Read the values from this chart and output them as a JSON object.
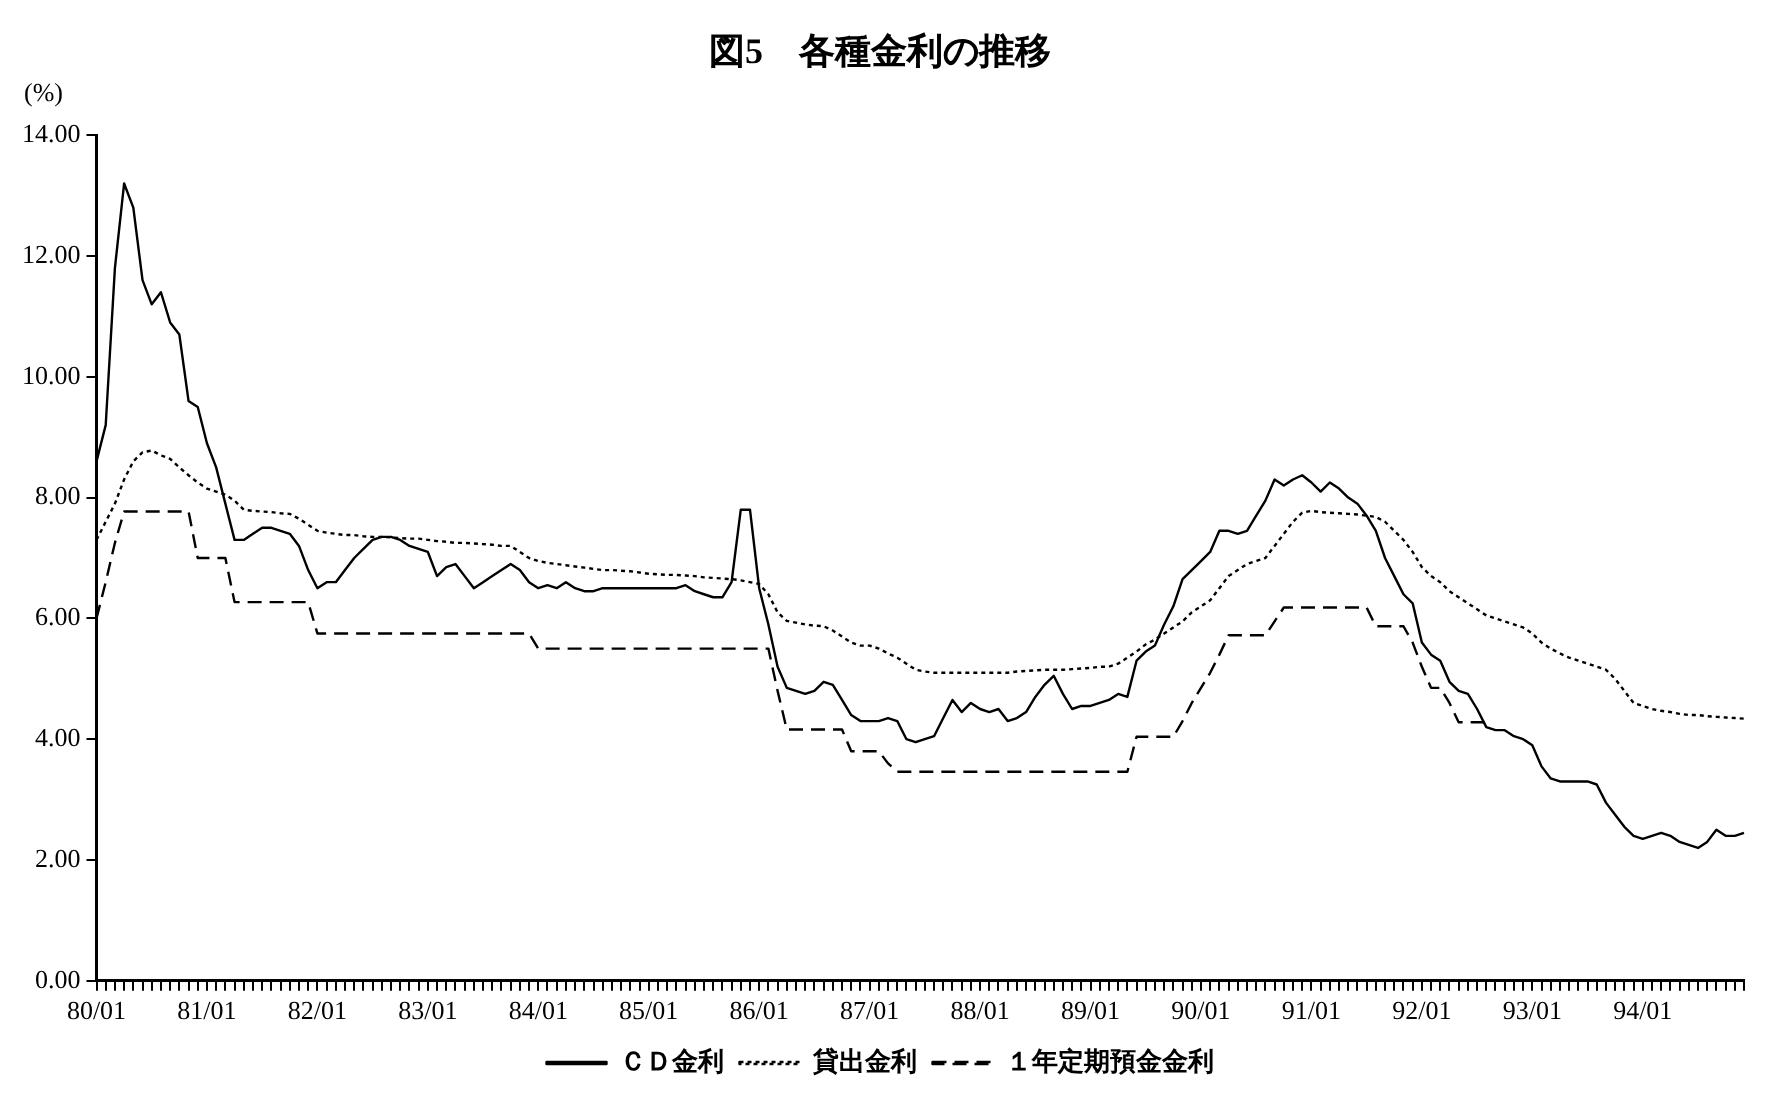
{
  "chart_data": {
    "type": "line",
    "title": "図5　各種金利の推移",
    "ylabel": "(%)",
    "categories": [
      "80/01",
      null,
      null,
      null,
      null,
      null,
      null,
      null,
      null,
      null,
      null,
      null,
      "81/01",
      null,
      null,
      null,
      null,
      null,
      null,
      null,
      null,
      null,
      null,
      null,
      "82/01",
      null,
      null,
      null,
      null,
      null,
      null,
      null,
      null,
      null,
      null,
      null,
      "83/01",
      null,
      null,
      null,
      null,
      null,
      null,
      null,
      null,
      null,
      null,
      null,
      "84/01",
      null,
      null,
      null,
      null,
      null,
      null,
      null,
      null,
      null,
      null,
      null,
      "85/01",
      null,
      null,
      null,
      null,
      null,
      null,
      null,
      null,
      null,
      null,
      null,
      "86/01",
      null,
      null,
      null,
      null,
      null,
      null,
      null,
      null,
      null,
      null,
      null,
      "87/01",
      null,
      null,
      null,
      null,
      null,
      null,
      null,
      null,
      null,
      null,
      null,
      "88/01",
      null,
      null,
      null,
      null,
      null,
      null,
      null,
      null,
      null,
      null,
      null,
      "89/01",
      null,
      null,
      null,
      null,
      null,
      null,
      null,
      null,
      null,
      null,
      null,
      "90/01",
      null,
      null,
      null,
      null,
      null,
      null,
      null,
      null,
      null,
      null,
      null,
      "91/01",
      null,
      null,
      null,
      null,
      null,
      null,
      null,
      null,
      null,
      null,
      null,
      "92/01",
      null,
      null,
      null,
      null,
      null,
      null,
      null,
      null,
      null,
      null,
      null,
      "93/01",
      null,
      null,
      null,
      null,
      null,
      null,
      null,
      null,
      null,
      null,
      null,
      "94/01",
      null,
      null,
      null,
      null,
      null,
      null,
      null,
      null,
      null,
      null,
      null
    ],
    "series": [
      {
        "name": "ＣＤ金利",
        "color": "#000000",
        "line_style": "solid",
        "values": [
          8.6,
          9.2,
          11.8,
          13.2,
          12.8,
          11.6,
          11.2,
          11.4,
          10.9,
          10.7,
          9.6,
          9.5,
          8.9,
          8.5,
          7.9,
          7.3,
          7.3,
          7.4,
          7.5,
          7.5,
          7.45,
          7.4,
          7.2,
          6.8,
          6.5,
          6.6,
          6.6,
          6.8,
          7.0,
          7.15,
          7.3,
          7.35,
          7.35,
          7.3,
          7.2,
          7.15,
          7.1,
          6.7,
          6.85,
          6.9,
          6.7,
          6.5,
          6.6,
          6.7,
          6.8,
          6.9,
          6.8,
          6.6,
          6.5,
          6.55,
          6.5,
          6.6,
          6.5,
          6.45,
          6.45,
          6.5,
          6.5,
          6.5,
          6.5,
          6.5,
          6.5,
          6.5,
          6.5,
          6.5,
          6.55,
          6.45,
          6.4,
          6.35,
          6.35,
          6.6,
          7.8,
          7.8,
          6.5,
          5.9,
          5.2,
          4.85,
          4.8,
          4.75,
          4.8,
          4.95,
          4.9,
          4.65,
          4.4,
          4.3,
          4.3,
          4.3,
          4.35,
          4.3,
          4.0,
          3.95,
          4.0,
          4.05,
          4.35,
          4.65,
          4.45,
          4.6,
          4.5,
          4.45,
          4.5,
          4.3,
          4.35,
          4.45,
          4.7,
          4.9,
          5.05,
          4.75,
          4.5,
          4.55,
          4.55,
          4.6,
          4.65,
          4.75,
          4.7,
          5.3,
          5.45,
          5.55,
          5.9,
          6.2,
          6.65,
          6.8,
          6.95,
          7.1,
          7.45,
          7.45,
          7.4,
          7.45,
          7.7,
          7.95,
          8.3,
          8.2,
          8.3,
          8.37,
          8.25,
          8.1,
          8.25,
          8.15,
          8.0,
          7.9,
          7.7,
          7.45,
          7.0,
          6.7,
          6.4,
          6.25,
          5.6,
          5.4,
          5.3,
          4.95,
          4.8,
          4.75,
          4.5,
          4.2,
          4.15,
          4.15,
          4.05,
          4.0,
          3.9,
          3.55,
          3.35,
          3.3,
          3.3,
          3.3,
          3.3,
          3.25,
          2.95,
          2.75,
          2.55,
          2.4,
          2.35,
          2.4,
          2.45,
          2.4,
          2.3,
          2.25,
          2.2,
          2.3,
          2.5,
          2.4,
          2.4,
          2.45
        ]
      },
      {
        "name": "貸出金利",
        "color": "#000000",
        "line_style": "dotted",
        "values": [
          7.3,
          7.6,
          7.9,
          8.3,
          8.6,
          8.75,
          8.78,
          8.7,
          8.64,
          8.5,
          8.37,
          8.25,
          8.15,
          8.1,
          8.05,
          7.95,
          7.8,
          7.78,
          7.77,
          7.76,
          7.74,
          7.73,
          7.65,
          7.55,
          7.45,
          7.42,
          7.4,
          7.38,
          7.38,
          7.36,
          7.35,
          7.35,
          7.34,
          7.33,
          7.32,
          7.32,
          7.3,
          7.28,
          7.27,
          7.25,
          7.25,
          7.24,
          7.23,
          7.22,
          7.2,
          7.2,
          7.1,
          7.0,
          6.95,
          6.92,
          6.9,
          6.88,
          6.86,
          6.84,
          6.82,
          6.8,
          6.8,
          6.79,
          6.78,
          6.76,
          6.74,
          6.73,
          6.72,
          6.72,
          6.71,
          6.7,
          6.68,
          6.67,
          6.66,
          6.65,
          6.63,
          6.6,
          6.57,
          6.4,
          6.1,
          5.96,
          5.93,
          5.9,
          5.88,
          5.87,
          5.8,
          5.7,
          5.6,
          5.55,
          5.55,
          5.5,
          5.42,
          5.35,
          5.25,
          5.15,
          5.12,
          5.1,
          5.1,
          5.1,
          5.1,
          5.1,
          5.1,
          5.1,
          5.1,
          5.1,
          5.12,
          5.13,
          5.14,
          5.15,
          5.15,
          5.15,
          5.16,
          5.17,
          5.18,
          5.2,
          5.2,
          5.25,
          5.35,
          5.45,
          5.57,
          5.65,
          5.75,
          5.85,
          5.95,
          6.1,
          6.2,
          6.3,
          6.5,
          6.7,
          6.8,
          6.9,
          6.95,
          7.0,
          7.2,
          7.4,
          7.6,
          7.75,
          7.78,
          7.76,
          7.75,
          7.74,
          7.73,
          7.72,
          7.7,
          7.68,
          7.6,
          7.45,
          7.3,
          7.1,
          6.85,
          6.7,
          6.6,
          6.45,
          6.35,
          6.25,
          6.15,
          6.05,
          6.0,
          5.95,
          5.9,
          5.85,
          5.75,
          5.6,
          5.5,
          5.42,
          5.35,
          5.3,
          5.25,
          5.2,
          5.15,
          5.0,
          4.8,
          4.6,
          4.55,
          4.5,
          4.47,
          4.45,
          4.42,
          4.4,
          4.4,
          4.38,
          4.37,
          4.36,
          4.35,
          4.34
        ]
      },
      {
        "name": "１年定期預金金利",
        "color": "#000000",
        "line_style": "dashed",
        "values": [
          6.0,
          6.6,
          7.25,
          7.77,
          7.77,
          7.77,
          7.77,
          7.77,
          7.77,
          7.77,
          7.77,
          7.0,
          7.0,
          7.0,
          7.0,
          6.27,
          6.27,
          6.27,
          6.27,
          6.27,
          6.27,
          6.27,
          6.27,
          6.27,
          5.75,
          5.75,
          5.75,
          5.75,
          5.75,
          5.75,
          5.75,
          5.75,
          5.75,
          5.75,
          5.75,
          5.75,
          5.75,
          5.75,
          5.75,
          5.75,
          5.75,
          5.75,
          5.75,
          5.75,
          5.75,
          5.75,
          5.75,
          5.75,
          5.5,
          5.5,
          5.5,
          5.5,
          5.5,
          5.5,
          5.5,
          5.5,
          5.5,
          5.5,
          5.5,
          5.5,
          5.5,
          5.5,
          5.5,
          5.5,
          5.5,
          5.5,
          5.5,
          5.5,
          5.5,
          5.5,
          5.5,
          5.5,
          5.5,
          5.5,
          4.8,
          4.16,
          4.16,
          4.16,
          4.16,
          4.16,
          4.16,
          4.16,
          3.8,
          3.8,
          3.8,
          3.8,
          3.6,
          3.46,
          3.46,
          3.46,
          3.46,
          3.46,
          3.46,
          3.46,
          3.46,
          3.46,
          3.46,
          3.46,
          3.46,
          3.46,
          3.46,
          3.46,
          3.46,
          3.46,
          3.46,
          3.46,
          3.46,
          3.46,
          3.46,
          3.46,
          3.46,
          3.46,
          3.46,
          4.04,
          4.04,
          4.04,
          4.04,
          4.04,
          4.3,
          4.6,
          4.85,
          5.1,
          5.4,
          5.72,
          5.72,
          5.72,
          5.72,
          5.72,
          5.95,
          6.18,
          6.18,
          6.18,
          6.18,
          6.18,
          6.18,
          6.18,
          6.18,
          6.18,
          6.18,
          5.87,
          5.87,
          5.87,
          5.87,
          5.6,
          5.2,
          4.85,
          4.85,
          4.6,
          4.28,
          4.28,
          4.28,
          4.28,
          null,
          null,
          null,
          null,
          null,
          null,
          null,
          null,
          null,
          null,
          null,
          null,
          null,
          null,
          null,
          null,
          null,
          null,
          null,
          null,
          null,
          null,
          null,
          null,
          null,
          null,
          null,
          null
        ]
      }
    ],
    "ylim": [
      0,
      14
    ],
    "yticks": [
      {
        "value": 0,
        "label": "0.00"
      },
      {
        "value": 2,
        "label": "2.00"
      },
      {
        "value": 4,
        "label": "4.00"
      },
      {
        "value": 6,
        "label": "6.00"
      },
      {
        "value": 8,
        "label": "8.00"
      },
      {
        "value": 10,
        "label": "10.00"
      },
      {
        "value": 12,
        "label": "12.00"
      },
      {
        "value": 14,
        "label": "14.00"
      }
    ],
    "grid": false,
    "legend": "bottom",
    "marker": "none"
  }
}
